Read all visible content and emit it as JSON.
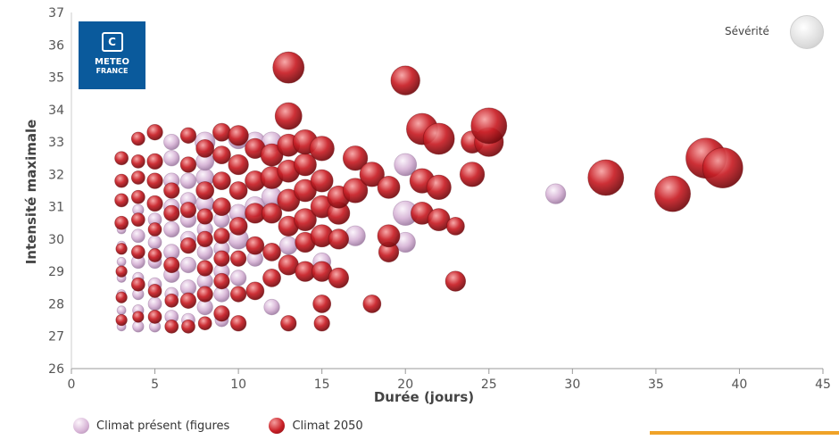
{
  "logo": {
    "line1": "METEO",
    "line2": "FRANCE",
    "mark": "icon-meteo-france"
  },
  "severity": {
    "label": "Sévérité",
    "icon": "sphere-size-icon"
  },
  "colors": {
    "present": "#d7b4d6",
    "present_light": "#fbf4fb",
    "present_dark": "#9c7aa0",
    "future": "#c92027",
    "future_light": "#f7a3a3",
    "future_dark": "#6e0a0e",
    "accent": "#f0a328"
  },
  "chart_data": {
    "type": "scatter",
    "xlabel": "Durée (jours)",
    "ylabel": "Intensité maximale",
    "xlim": [
      0,
      45
    ],
    "ylim": [
      26,
      37
    ],
    "x_ticks": [
      0,
      5,
      10,
      15,
      20,
      25,
      30,
      35,
      40,
      45
    ],
    "y_ticks": [
      26,
      27,
      28,
      29,
      30,
      31,
      32,
      33,
      34,
      35,
      36,
      37
    ],
    "grid": false,
    "legend": "bottom-left",
    "series": [
      {
        "name": "Climat présent (figures",
        "points": [
          {
            "x": 3,
            "y": 27.3,
            "s": 4
          },
          {
            "x": 3,
            "y": 27.8,
            "s": 4
          },
          {
            "x": 3,
            "y": 28.3,
            "s": 4
          },
          {
            "x": 3,
            "y": 28.8,
            "s": 4
          },
          {
            "x": 3,
            "y": 29.3,
            "s": 4
          },
          {
            "x": 3,
            "y": 29.8,
            "s": 4
          },
          {
            "x": 3,
            "y": 30.3,
            "s": 4
          },
          {
            "x": 4,
            "y": 27.3,
            "s": 5
          },
          {
            "x": 4,
            "y": 27.8,
            "s": 5
          },
          {
            "x": 4,
            "y": 28.3,
            "s": 5
          },
          {
            "x": 4,
            "y": 28.8,
            "s": 5
          },
          {
            "x": 4,
            "y": 29.3,
            "s": 6
          },
          {
            "x": 4,
            "y": 30.1,
            "s": 6
          },
          {
            "x": 4,
            "y": 30.9,
            "s": 5
          },
          {
            "x": 5,
            "y": 27.3,
            "s": 5
          },
          {
            "x": 5,
            "y": 28.0,
            "s": 6
          },
          {
            "x": 5,
            "y": 28.6,
            "s": 6
          },
          {
            "x": 5,
            "y": 29.3,
            "s": 6
          },
          {
            "x": 5,
            "y": 29.9,
            "s": 6
          },
          {
            "x": 5,
            "y": 30.6,
            "s": 6
          },
          {
            "x": 6,
            "y": 27.6,
            "s": 6
          },
          {
            "x": 6,
            "y": 28.3,
            "s": 6
          },
          {
            "x": 6,
            "y": 28.9,
            "s": 7
          },
          {
            "x": 6,
            "y": 29.6,
            "s": 7
          },
          {
            "x": 6,
            "y": 30.3,
            "s": 7
          },
          {
            "x": 6,
            "y": 31.0,
            "s": 7
          },
          {
            "x": 6,
            "y": 31.8,
            "s": 7
          },
          {
            "x": 6,
            "y": 32.5,
            "s": 7
          },
          {
            "x": 6,
            "y": 33.0,
            "s": 7
          },
          {
            "x": 7,
            "y": 27.5,
            "s": 6
          },
          {
            "x": 7,
            "y": 28.5,
            "s": 7
          },
          {
            "x": 7,
            "y": 29.2,
            "s": 7
          },
          {
            "x": 7,
            "y": 30.0,
            "s": 7
          },
          {
            "x": 7,
            "y": 30.6,
            "s": 7
          },
          {
            "x": 7,
            "y": 31.2,
            "s": 7
          },
          {
            "x": 7,
            "y": 31.8,
            "s": 7
          },
          {
            "x": 8,
            "y": 27.9,
            "s": 7
          },
          {
            "x": 8,
            "y": 28.7,
            "s": 7
          },
          {
            "x": 8,
            "y": 29.6,
            "s": 7
          },
          {
            "x": 8,
            "y": 30.3,
            "s": 7
          },
          {
            "x": 8,
            "y": 31.1,
            "s": 8
          },
          {
            "x": 8,
            "y": 31.9,
            "s": 8
          },
          {
            "x": 8,
            "y": 32.4,
            "s": 8
          },
          {
            "x": 8,
            "y": 33.0,
            "s": 9
          },
          {
            "x": 9,
            "y": 27.5,
            "s": 6
          },
          {
            "x": 9,
            "y": 28.3,
            "s": 7
          },
          {
            "x": 9,
            "y": 29.0,
            "s": 7
          },
          {
            "x": 9,
            "y": 29.7,
            "s": 7
          },
          {
            "x": 9,
            "y": 30.6,
            "s": 7
          },
          {
            "x": 10,
            "y": 28.8,
            "s": 7
          },
          {
            "x": 10,
            "y": 30.0,
            "s": 9
          },
          {
            "x": 10,
            "y": 30.8,
            "s": 8
          },
          {
            "x": 10,
            "y": 33.1,
            "s": 9
          },
          {
            "x": 11,
            "y": 29.4,
            "s": 7
          },
          {
            "x": 11,
            "y": 31.0,
            "s": 9
          },
          {
            "x": 11,
            "y": 33.0,
            "s": 9
          },
          {
            "x": 12,
            "y": 27.9,
            "s": 7
          },
          {
            "x": 12,
            "y": 31.3,
            "s": 9
          },
          {
            "x": 12,
            "y": 33.0,
            "s": 9
          },
          {
            "x": 13,
            "y": 29.8,
            "s": 8
          },
          {
            "x": 15,
            "y": 29.3,
            "s": 8
          },
          {
            "x": 17,
            "y": 30.1,
            "s": 9
          },
          {
            "x": 20,
            "y": 29.9,
            "s": 9
          },
          {
            "x": 20,
            "y": 30.8,
            "s": 11
          },
          {
            "x": 20,
            "y": 32.3,
            "s": 10
          },
          {
            "x": 29,
            "y": 31.4,
            "s": 9
          }
        ]
      },
      {
        "name": "Climat 2050",
        "points": [
          {
            "x": 3,
            "y": 27.5,
            "s": 5
          },
          {
            "x": 3,
            "y": 28.2,
            "s": 5
          },
          {
            "x": 3,
            "y": 29.0,
            "s": 5
          },
          {
            "x": 3,
            "y": 29.7,
            "s": 5
          },
          {
            "x": 3,
            "y": 30.5,
            "s": 6
          },
          {
            "x": 3,
            "y": 31.2,
            "s": 6
          },
          {
            "x": 3,
            "y": 31.8,
            "s": 6
          },
          {
            "x": 3,
            "y": 32.5,
            "s": 6
          },
          {
            "x": 4,
            "y": 27.6,
            "s": 5
          },
          {
            "x": 4,
            "y": 28.6,
            "s": 6
          },
          {
            "x": 4,
            "y": 29.6,
            "s": 6
          },
          {
            "x": 4,
            "y": 30.6,
            "s": 6
          },
          {
            "x": 4,
            "y": 31.3,
            "s": 6
          },
          {
            "x": 4,
            "y": 31.9,
            "s": 6
          },
          {
            "x": 4,
            "y": 32.4,
            "s": 6
          },
          {
            "x": 4,
            "y": 33.1,
            "s": 6
          },
          {
            "x": 5,
            "y": 27.6,
            "s": 6
          },
          {
            "x": 5,
            "y": 28.4,
            "s": 6
          },
          {
            "x": 5,
            "y": 29.5,
            "s": 6
          },
          {
            "x": 5,
            "y": 30.3,
            "s": 6
          },
          {
            "x": 5,
            "y": 31.1,
            "s": 7
          },
          {
            "x": 5,
            "y": 31.8,
            "s": 7
          },
          {
            "x": 5,
            "y": 32.4,
            "s": 7
          },
          {
            "x": 5,
            "y": 33.3,
            "s": 7
          },
          {
            "x": 6,
            "y": 27.3,
            "s": 6
          },
          {
            "x": 6,
            "y": 28.1,
            "s": 6
          },
          {
            "x": 6,
            "y": 29.2,
            "s": 7
          },
          {
            "x": 6,
            "y": 30.8,
            "s": 7
          },
          {
            "x": 6,
            "y": 31.5,
            "s": 7
          },
          {
            "x": 7,
            "y": 27.3,
            "s": 6
          },
          {
            "x": 7,
            "y": 28.1,
            "s": 7
          },
          {
            "x": 7,
            "y": 29.8,
            "s": 7
          },
          {
            "x": 7,
            "y": 30.9,
            "s": 7
          },
          {
            "x": 7,
            "y": 32.3,
            "s": 7
          },
          {
            "x": 7,
            "y": 33.2,
            "s": 7
          },
          {
            "x": 8,
            "y": 27.4,
            "s": 6
          },
          {
            "x": 8,
            "y": 28.3,
            "s": 7
          },
          {
            "x": 8,
            "y": 29.1,
            "s": 7
          },
          {
            "x": 8,
            "y": 30.0,
            "s": 7
          },
          {
            "x": 8,
            "y": 30.7,
            "s": 7
          },
          {
            "x": 8,
            "y": 31.5,
            "s": 8
          },
          {
            "x": 8,
            "y": 32.8,
            "s": 8
          },
          {
            "x": 9,
            "y": 27.7,
            "s": 7
          },
          {
            "x": 9,
            "y": 28.7,
            "s": 7
          },
          {
            "x": 9,
            "y": 29.4,
            "s": 7
          },
          {
            "x": 9,
            "y": 30.1,
            "s": 7
          },
          {
            "x": 9,
            "y": 31.0,
            "s": 8
          },
          {
            "x": 9,
            "y": 31.8,
            "s": 8
          },
          {
            "x": 9,
            "y": 32.6,
            "s": 8
          },
          {
            "x": 9,
            "y": 33.3,
            "s": 8
          },
          {
            "x": 10,
            "y": 27.4,
            "s": 7
          },
          {
            "x": 10,
            "y": 28.3,
            "s": 7
          },
          {
            "x": 10,
            "y": 29.4,
            "s": 7
          },
          {
            "x": 10,
            "y": 30.4,
            "s": 8
          },
          {
            "x": 10,
            "y": 31.5,
            "s": 8
          },
          {
            "x": 10,
            "y": 32.3,
            "s": 9
          },
          {
            "x": 10,
            "y": 33.2,
            "s": 9
          },
          {
            "x": 11,
            "y": 28.4,
            "s": 8
          },
          {
            "x": 11,
            "y": 29.8,
            "s": 8
          },
          {
            "x": 11,
            "y": 30.8,
            "s": 9
          },
          {
            "x": 11,
            "y": 31.8,
            "s": 9
          },
          {
            "x": 11,
            "y": 32.8,
            "s": 9
          },
          {
            "x": 12,
            "y": 28.8,
            "s": 8
          },
          {
            "x": 12,
            "y": 29.6,
            "s": 8
          },
          {
            "x": 12,
            "y": 30.8,
            "s": 9
          },
          {
            "x": 12,
            "y": 31.9,
            "s": 10
          },
          {
            "x": 12,
            "y": 32.6,
            "s": 10
          },
          {
            "x": 13,
            "y": 27.4,
            "s": 7
          },
          {
            "x": 13,
            "y": 29.2,
            "s": 9
          },
          {
            "x": 13,
            "y": 30.4,
            "s": 9
          },
          {
            "x": 13,
            "y": 31.2,
            "s": 10
          },
          {
            "x": 13,
            "y": 32.1,
            "s": 10
          },
          {
            "x": 13,
            "y": 32.9,
            "s": 10
          },
          {
            "x": 13,
            "y": 33.8,
            "s": 12
          },
          {
            "x": 13,
            "y": 35.3,
            "s": 14
          },
          {
            "x": 14,
            "y": 29.0,
            "s": 9
          },
          {
            "x": 14,
            "y": 29.9,
            "s": 9
          },
          {
            "x": 14,
            "y": 30.6,
            "s": 10
          },
          {
            "x": 14,
            "y": 31.5,
            "s": 10
          },
          {
            "x": 14,
            "y": 32.3,
            "s": 10
          },
          {
            "x": 14,
            "y": 33.0,
            "s": 11
          },
          {
            "x": 15,
            "y": 27.4,
            "s": 7
          },
          {
            "x": 15,
            "y": 28.0,
            "s": 8
          },
          {
            "x": 15,
            "y": 29.0,
            "s": 9
          },
          {
            "x": 15,
            "y": 30.1,
            "s": 10
          },
          {
            "x": 15,
            "y": 31.0,
            "s": 10
          },
          {
            "x": 15,
            "y": 31.8,
            "s": 10
          },
          {
            "x": 15,
            "y": 32.8,
            "s": 11
          },
          {
            "x": 16,
            "y": 28.8,
            "s": 9
          },
          {
            "x": 16,
            "y": 30.0,
            "s": 9
          },
          {
            "x": 16,
            "y": 30.8,
            "s": 10
          },
          {
            "x": 16,
            "y": 31.3,
            "s": 10
          },
          {
            "x": 17,
            "y": 31.5,
            "s": 11
          },
          {
            "x": 17,
            "y": 32.5,
            "s": 11
          },
          {
            "x": 18,
            "y": 28.0,
            "s": 8
          },
          {
            "x": 18,
            "y": 32.0,
            "s": 11
          },
          {
            "x": 19,
            "y": 29.6,
            "s": 9
          },
          {
            "x": 19,
            "y": 30.1,
            "s": 10
          },
          {
            "x": 19,
            "y": 31.6,
            "s": 10
          },
          {
            "x": 20,
            "y": 34.9,
            "s": 13
          },
          {
            "x": 21,
            "y": 30.8,
            "s": 10
          },
          {
            "x": 21,
            "y": 31.8,
            "s": 11
          },
          {
            "x": 21,
            "y": 33.4,
            "s": 14
          },
          {
            "x": 22,
            "y": 30.6,
            "s": 10
          },
          {
            "x": 22,
            "y": 31.6,
            "s": 11
          },
          {
            "x": 22,
            "y": 33.1,
            "s": 14
          },
          {
            "x": 23,
            "y": 30.4,
            "s": 8
          },
          {
            "x": 23,
            "y": 28.7,
            "s": 9
          },
          {
            "x": 24,
            "y": 32.0,
            "s": 11
          },
          {
            "x": 24,
            "y": 33.0,
            "s": 10
          },
          {
            "x": 25,
            "y": 33.0,
            "s": 13
          },
          {
            "x": 25,
            "y": 33.5,
            "s": 16
          },
          {
            "x": 32,
            "y": 31.9,
            "s": 16
          },
          {
            "x": 36,
            "y": 31.4,
            "s": 16
          },
          {
            "x": 38,
            "y": 32.5,
            "s": 18
          },
          {
            "x": 39,
            "y": 32.2,
            "s": 18
          }
        ]
      }
    ]
  }
}
